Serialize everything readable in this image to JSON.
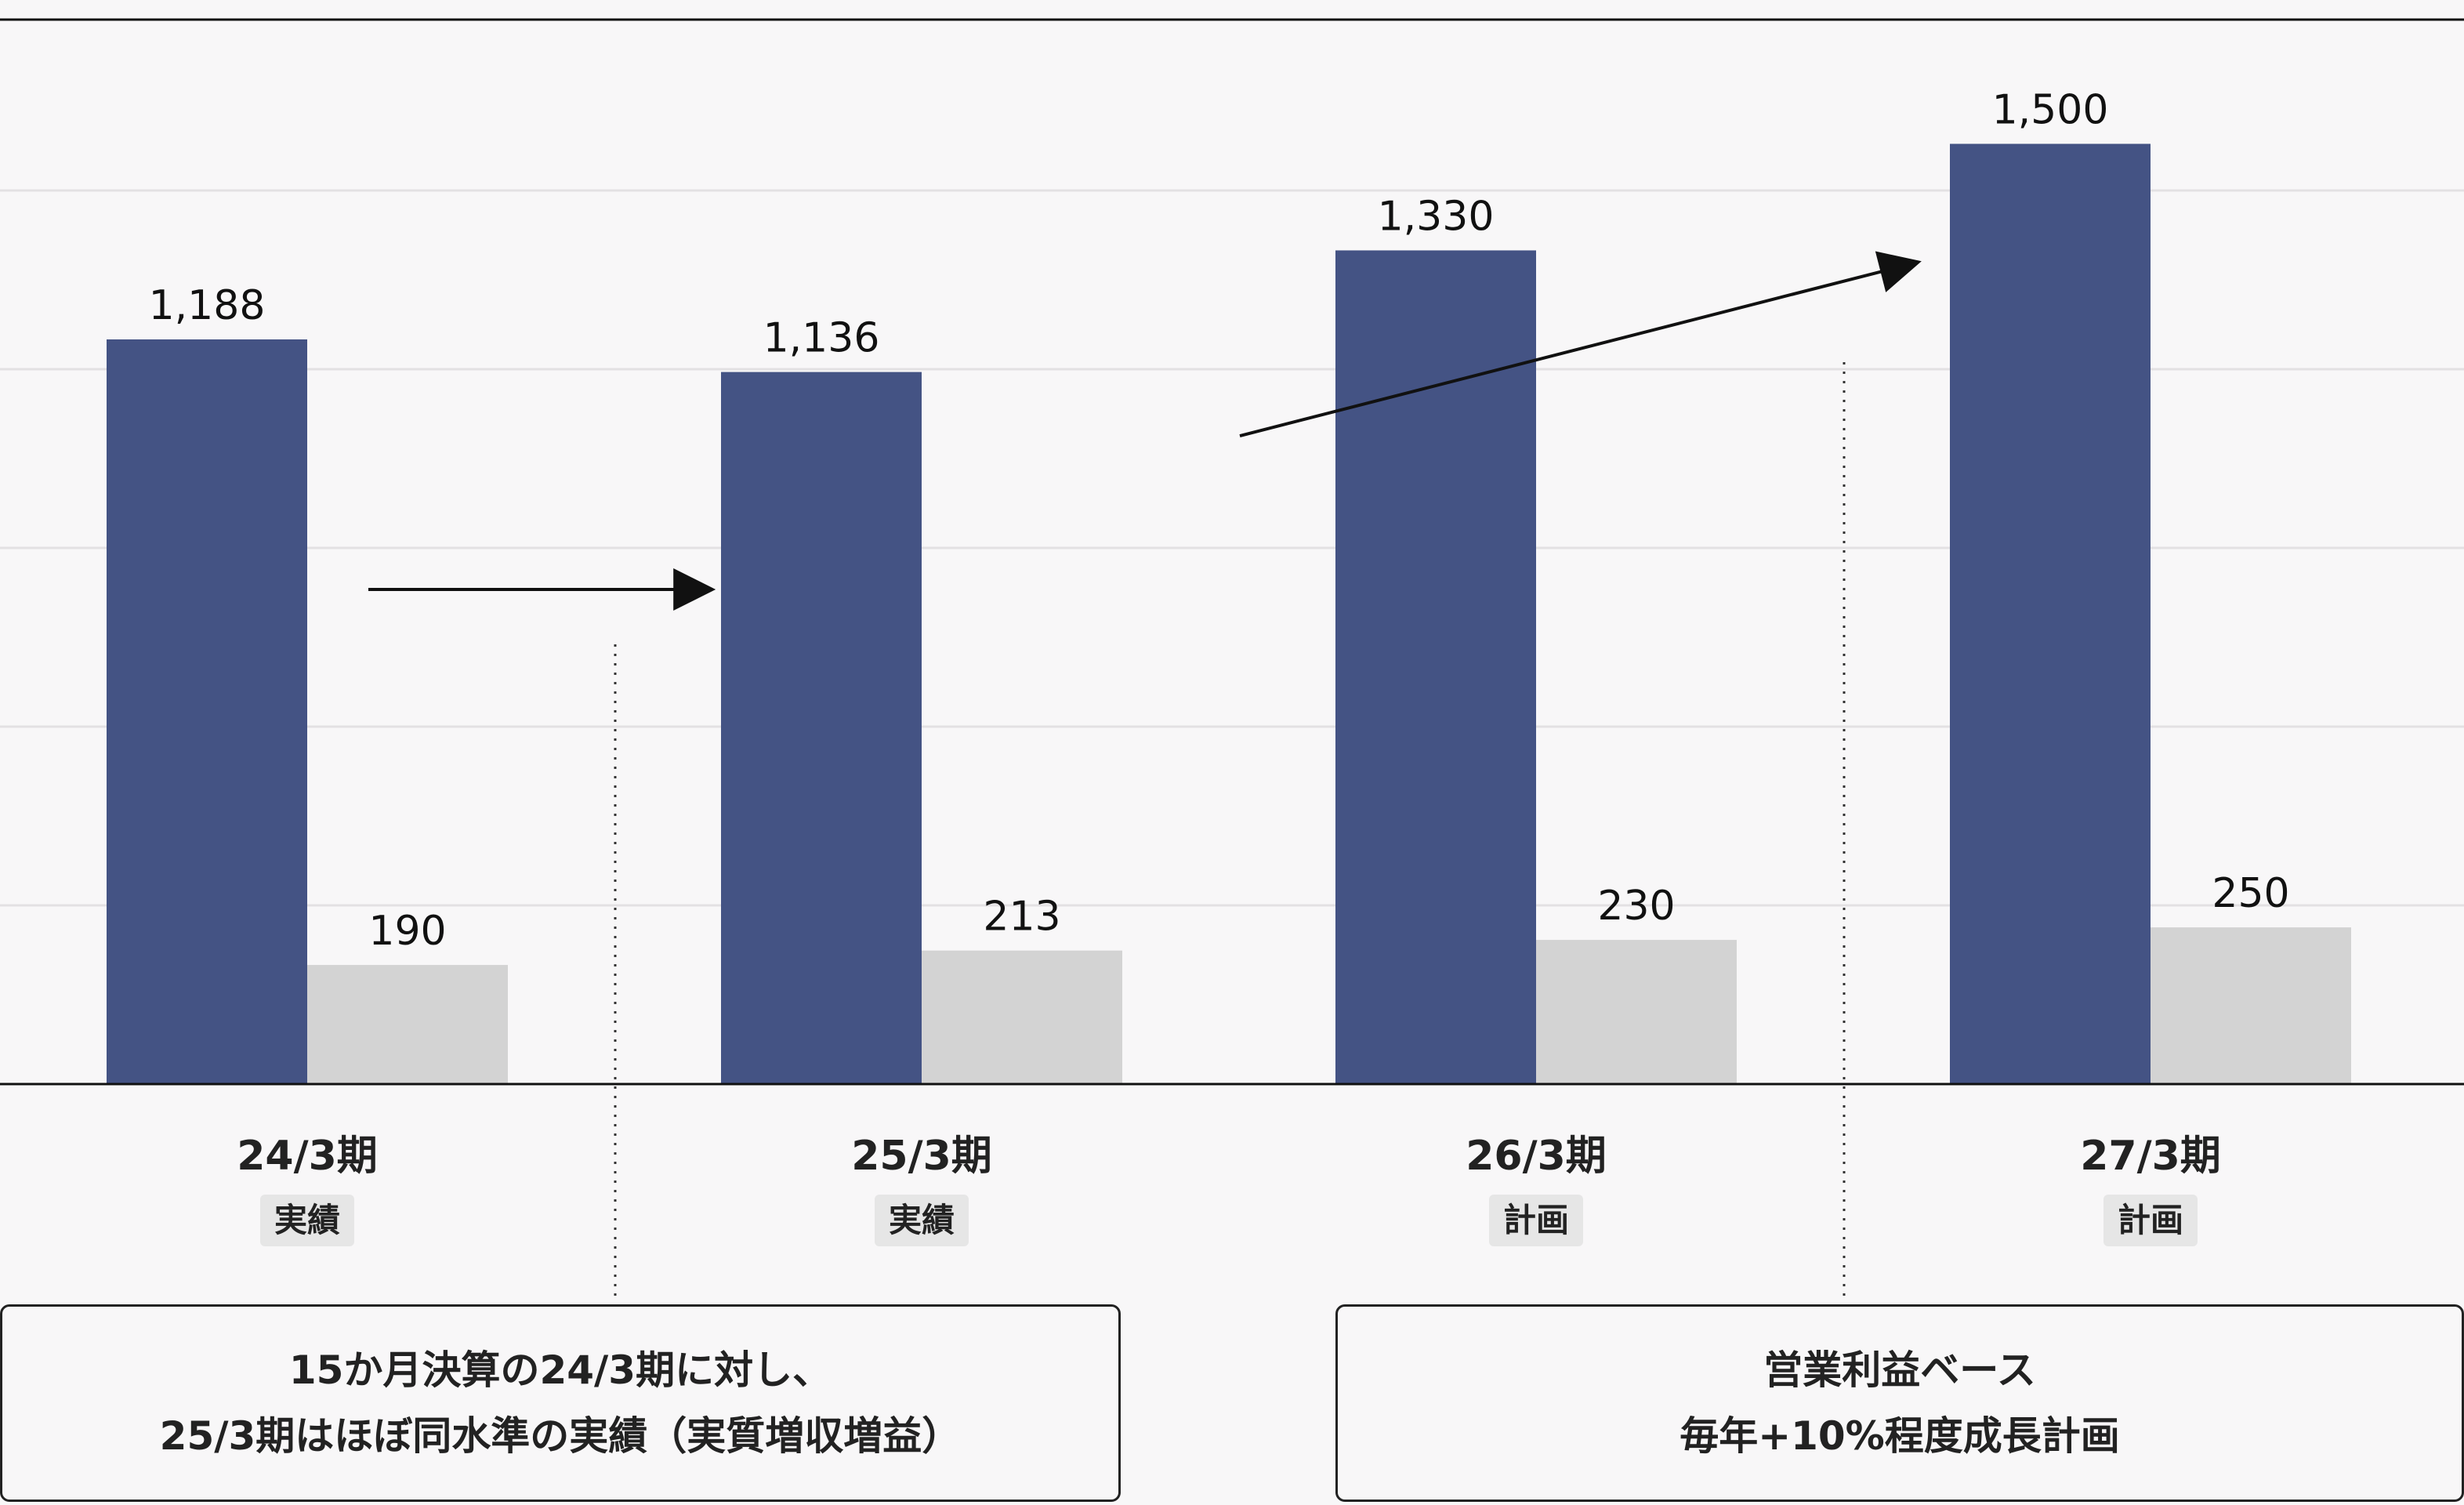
{
  "chart_data": {
    "type": "bar",
    "categories": [
      "24/3期",
      "25/3期",
      "26/3期",
      "27/3期"
    ],
    "category_badges": [
      "実績",
      "実績",
      "計画",
      "計画"
    ],
    "series": [
      {
        "values": [
          1188,
          1136,
          1330,
          1500
        ],
        "color": "#445384"
      },
      {
        "values": [
          190,
          213,
          230,
          250
        ],
        "color": "#d3d3d3"
      }
    ],
    "value_labels": [
      [
        "1,188",
        "1,136",
        "1,330",
        "1,500"
      ],
      [
        "190",
        "213",
        "230",
        "250"
      ]
    ],
    "ylim": [
      0,
      1700
    ],
    "grid": true,
    "annotations": [
      {
        "lines": [
          "15か月決算の24/3期に対し、",
          "25/3期はほぼ同水準の実績（実質増収増益）"
        ]
      },
      {
        "lines": [
          "営業利益ベース",
          "毎年+10%程度成長計画"
        ]
      }
    ]
  }
}
